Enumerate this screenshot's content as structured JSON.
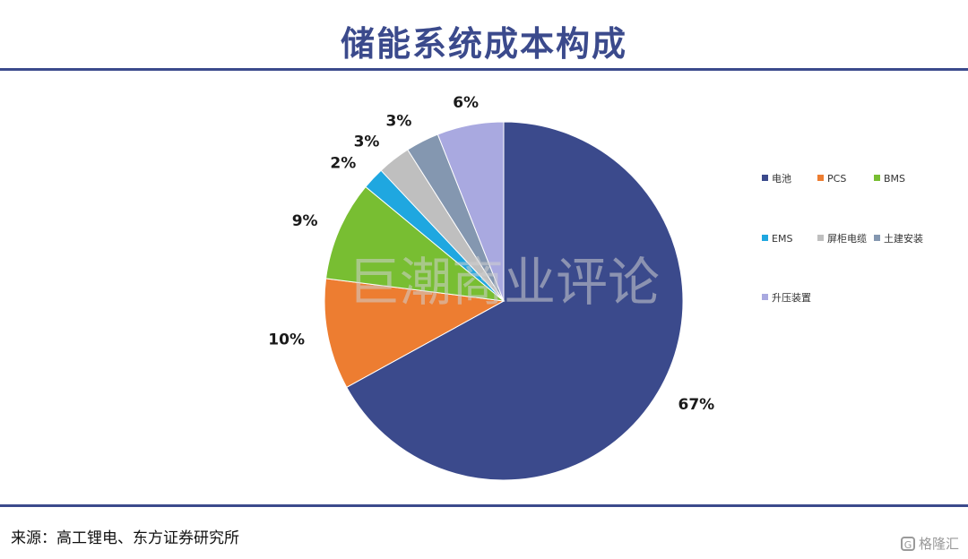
{
  "page": {
    "title": "储能系统成本构成",
    "source": "来源：高工锂电、东方证券研究所",
    "watermark": "巨潮商业评论",
    "brand": "格隆汇"
  },
  "colors": {
    "title": "#3b4a8c",
    "rule": "#3b4a8c"
  },
  "icons": {
    "brand": "gelonghui-logo-icon"
  },
  "chart_data": {
    "type": "pie",
    "title": "储能系统成本构成",
    "legend_position": "right",
    "start_angle_deg": 0,
    "direction": "clockwise",
    "slices": [
      {
        "label": "电池",
        "value": 67,
        "value_label": "67%",
        "color": "#3b4a8c"
      },
      {
        "label": "PCS",
        "value": 10,
        "value_label": "10%",
        "color": "#ed7d31"
      },
      {
        "label": "BMS",
        "value": 9,
        "value_label": "9%",
        "color": "#78be32"
      },
      {
        "label": "EMS",
        "value": 2,
        "value_label": "2%",
        "color": "#1fa7e0"
      },
      {
        "label": "屏柜电缆",
        "value": 3,
        "value_label": "3%",
        "color": "#bfbfbf"
      },
      {
        "label": "土建安装",
        "value": 3,
        "value_label": "3%",
        "color": "#8497b0"
      },
      {
        "label": "升压装置",
        "value": 6,
        "value_label": "6%",
        "color": "#a9a9e0"
      }
    ]
  }
}
